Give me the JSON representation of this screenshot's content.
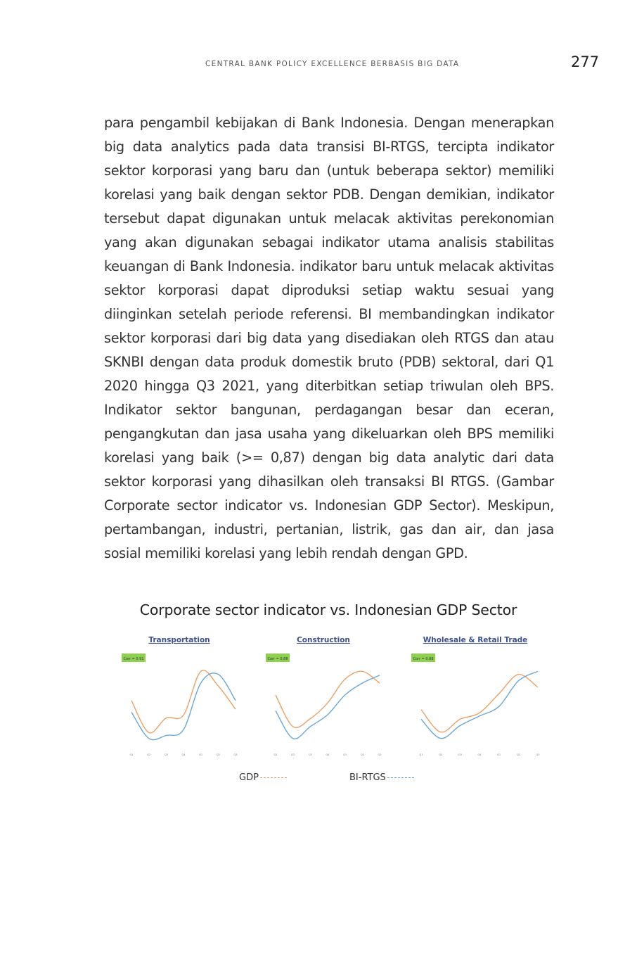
{
  "header": {
    "running_title": "CENTRAL BANK POLICY EXCELLENCE BERBASIS BIG DATA",
    "page_number": "277"
  },
  "body": {
    "paragraph": "para pengambil kebijakan di Bank Indonesia. Dengan menerapkan big data analytics pada data transisi BI-RTGS, tercipta indikator sektor korporasi yang baru dan (untuk beberapa sektor) memiliki korelasi yang baik dengan sektor PDB. Dengan demikian, indikator tersebut dapat digunakan untuk melacak aktivitas perekonomian yang akan digunakan sebagai indikator utama analisis stabilitas keuangan di Bank Indonesia. indikator baru untuk melacak aktivitas sektor korporasi dapat diproduksi setiap waktu sesuai yang diinginkan setelah periode referensi. BI membandingkan indikator sektor korporasi dari big data yang disediakan oleh RTGS dan atau SKNBI dengan data produk domestik bruto (PDB) sektoral, dari Q1 2020 hingga Q3 2021, yang diterbitkan setiap triwulan oleh BPS. Indikator sektor bangunan, perdagangan besar dan eceran, pengangkutan dan jasa usaha yang dikeluarkan oleh BPS memiliki korelasi yang baik (>= 0,87) dengan big data analytic dari data sektor korporasi yang dihasilkan oleh transaksi BI RTGS. (Gambar Corporate sector indicator vs. Indonesian GDP Sector). Meskipun, pertambangan, industri, pertanian, listrik, gas dan air, dan jasa sosial memiliki korelasi yang lebih rendah dengan GPD."
  },
  "figure": {
    "caption": "Corporate sector indicator vs. Indonesian GDP Sector",
    "legend": {
      "gdp_label": "GDP",
      "rtgs_label": "BI-RTGS"
    },
    "colors": {
      "gdp": "#e8a16a",
      "rtgs": "#6aa6d6",
      "corr_badge": "#8fd14f",
      "title": "#3b4f8c"
    }
  },
  "chart_data": [
    {
      "type": "line",
      "title": "Transportation",
      "badge": "Corr = 0.91",
      "x": [
        "Q1",
        "Q2",
        "Q3",
        "Q4",
        "Q1",
        "Q2",
        "Q3"
      ],
      "series": [
        {
          "name": "GDP",
          "values": [
            -2,
            -24,
            -14,
            -12,
            18,
            8,
            -8
          ]
        },
        {
          "name": "BI-RTGS",
          "values": [
            -10,
            -28,
            -26,
            -22,
            10,
            16,
            -2
          ]
        }
      ]
    },
    {
      "type": "line",
      "title": "Construction",
      "badge": "Corr = 0.88",
      "x": [
        "Q1",
        "Q2",
        "Q3",
        "Q4",
        "Q1",
        "Q2",
        "Q3"
      ],
      "series": [
        {
          "name": "GDP",
          "values": [
            2,
            -6,
            -4,
            0,
            6,
            8,
            5
          ]
        },
        {
          "name": "BI-RTGS",
          "values": [
            -2,
            -9,
            -6,
            -3,
            2,
            5,
            7
          ]
        }
      ]
    },
    {
      "type": "line",
      "title": "Wholesale & Retail Trade",
      "badge": "Corr = 0.88",
      "x": [
        "Q1",
        "Q2",
        "Q3",
        "Q4",
        "Q1",
        "Q2",
        "Q3"
      ],
      "series": [
        {
          "name": "GDP",
          "values": [
            -1,
            -8,
            -4,
            -2,
            4,
            10,
            6
          ]
        },
        {
          "name": "BI-RTGS",
          "values": [
            -4,
            -10,
            -6,
            -3,
            0,
            8,
            11
          ]
        }
      ]
    }
  ]
}
